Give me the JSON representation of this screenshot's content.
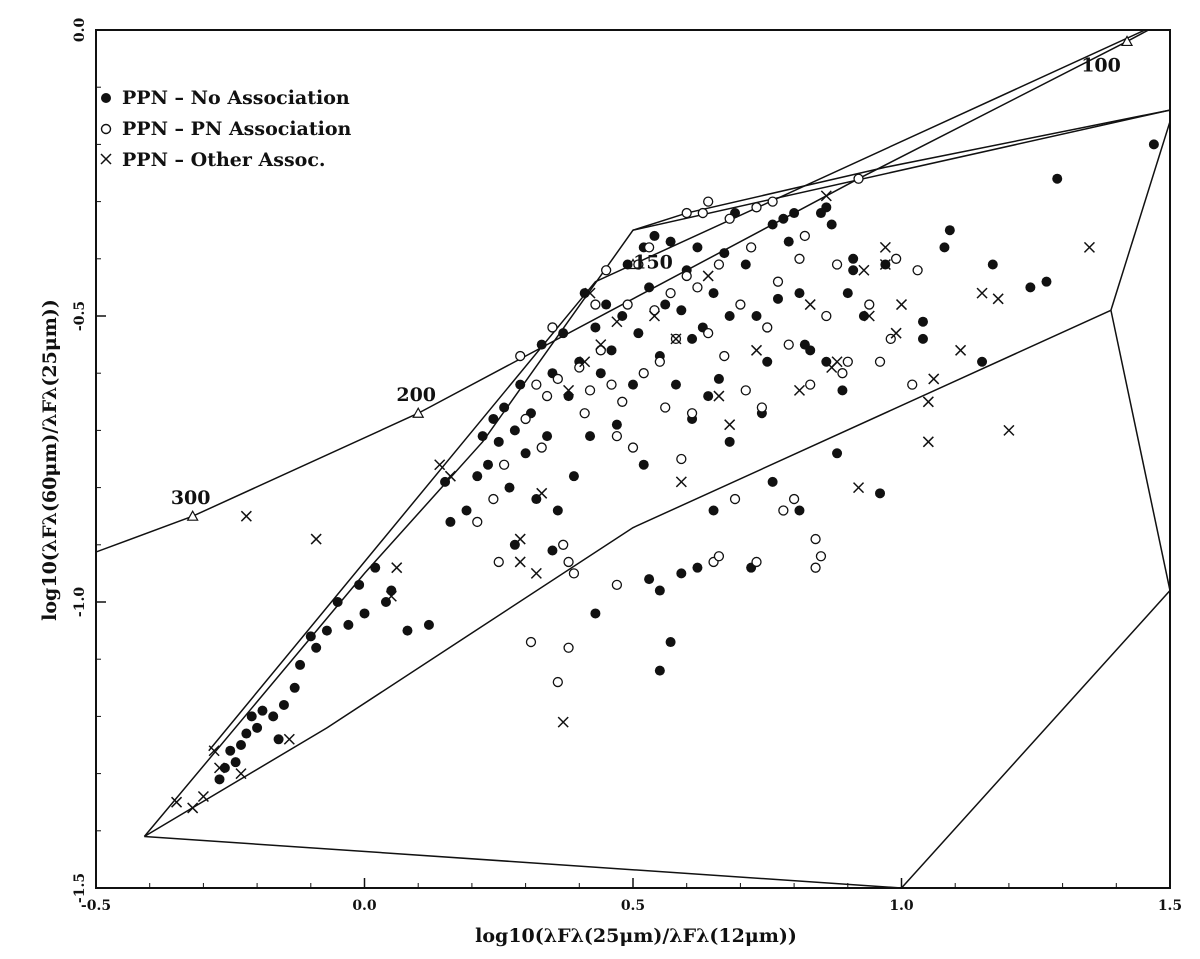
{
  "chart_data": {
    "type": "scatter",
    "xlim": [
      -0.5,
      1.5
    ],
    "ylim": [
      -1.5,
      0.0
    ],
    "x_ticks": [
      "-0.5",
      "0.0",
      "0.5",
      "1.0",
      "1.5"
    ],
    "y_ticks": [
      "0.0",
      "-0.5",
      "-1.0",
      "-1.5"
    ],
    "xlabel": "log10(λFλ(25μm)/λFλ(12μm))",
    "ylabel": "log10(λFλ(60μm)/λFλ(25μm))",
    "legend_position": "top-left",
    "grid": false,
    "colors": {
      "ink": "#111111"
    },
    "legend": [
      {
        "marker": "filled-circle",
        "label": "PPN – No Association"
      },
      {
        "marker": "open-circle",
        "label": "PPN – PN Association"
      },
      {
        "marker": "cross",
        "label": "PPN – Other Assoc."
      }
    ],
    "blackbody_line": {
      "points": [
        [
          -0.55,
          -0.93
        ],
        [
          -0.32,
          -0.85
        ],
        [
          0.1,
          -0.67
        ],
        [
          0.92,
          -0.26
        ],
        [
          1.42,
          -0.02
        ],
        [
          1.5,
          0.02
        ]
      ],
      "markers": [
        {
          "x": -0.32,
          "y": -0.85,
          "label": "300"
        },
        {
          "x": 0.1,
          "y": -0.67,
          "label": "200"
        },
        {
          "x": 0.5,
          "y": -0.41,
          "label": "150"
        },
        {
          "x": 1.42,
          "y": -0.02,
          "label": "100"
        }
      ]
    },
    "region_boundaries": [
      [
        [
          -0.41,
          -1.41
        ],
        [
          -0.07,
          -1.22
        ],
        [
          0.5,
          -0.87
        ],
        [
          1.39,
          -0.49
        ]
      ],
      [
        [
          -0.41,
          -1.41
        ],
        [
          0.0,
          -0.95
        ],
        [
          0.22,
          -0.72
        ],
        [
          0.5,
          -0.35
        ],
        [
          0.6,
          -0.32
        ],
        [
          0.97,
          -0.24
        ],
        [
          1.5,
          -0.14
        ]
      ],
      [
        [
          -0.41,
          -1.41
        ],
        [
          1.0,
          -1.5
        ]
      ],
      [
        [
          1.39,
          -0.49
        ],
        [
          1.5,
          -0.16
        ]
      ],
      [
        [
          1.39,
          -0.49
        ],
        [
          1.5,
          -0.98
        ]
      ],
      [
        [
          1.0,
          -1.5
        ],
        [
          1.5,
          -0.98
        ]
      ],
      [
        [
          0.5,
          -0.35
        ],
        [
          1.5,
          -0.14
        ]
      ],
      [
        [
          -0.29,
          -1.26
        ],
        [
          0.43,
          -0.44
        ],
        [
          1.5,
          0.02
        ]
      ]
    ],
    "series": [
      {
        "name": "PPN – No Association",
        "marker": "filled-circle",
        "points": [
          [
            1.47,
            -0.2
          ],
          [
            1.29,
            -0.26
          ],
          [
            1.27,
            -0.44
          ],
          [
            1.24,
            -0.45
          ],
          [
            1.17,
            -0.41
          ],
          [
            1.15,
            -0.58
          ],
          [
            1.09,
            -0.35
          ],
          [
            1.08,
            -0.38
          ],
          [
            1.04,
            -0.51
          ],
          [
            1.04,
            -0.54
          ],
          [
            0.97,
            -0.41
          ],
          [
            0.93,
            -0.5
          ],
          [
            0.91,
            -0.4
          ],
          [
            0.91,
            -0.42
          ],
          [
            0.9,
            -0.46
          ],
          [
            0.89,
            -0.63
          ],
          [
            0.88,
            -0.74
          ],
          [
            0.87,
            -0.34
          ],
          [
            0.86,
            -0.58
          ],
          [
            0.86,
            -0.31
          ],
          [
            0.85,
            -0.32
          ],
          [
            0.83,
            -0.56
          ],
          [
            0.82,
            -0.55
          ],
          [
            0.81,
            -0.46
          ],
          [
            0.8,
            -0.32
          ],
          [
            0.79,
            -0.37
          ],
          [
            0.78,
            -0.33
          ],
          [
            0.77,
            -0.47
          ],
          [
            0.76,
            -0.34
          ],
          [
            0.75,
            -0.58
          ],
          [
            0.74,
            -0.67
          ],
          [
            0.73,
            -0.5
          ],
          [
            0.72,
            -0.38
          ],
          [
            0.71,
            -0.41
          ],
          [
            0.69,
            -0.32
          ],
          [
            0.68,
            -0.5
          ],
          [
            0.67,
            -0.39
          ],
          [
            0.66,
            -0.61
          ],
          [
            0.65,
            -0.46
          ],
          [
            0.64,
            -0.64
          ],
          [
            0.63,
            -0.52
          ],
          [
            0.62,
            -0.38
          ],
          [
            0.61,
            -0.54
          ],
          [
            0.6,
            -0.42
          ],
          [
            0.59,
            -0.49
          ],
          [
            0.58,
            -0.62
          ],
          [
            0.57,
            -0.37
          ],
          [
            0.56,
            -0.48
          ],
          [
            0.55,
            -0.57
          ],
          [
            0.54,
            -0.36
          ],
          [
            0.53,
            -0.45
          ],
          [
            0.52,
            -0.38
          ],
          [
            0.51,
            -0.53
          ],
          [
            0.5,
            -0.62
          ],
          [
            0.49,
            -0.41
          ],
          [
            0.48,
            -0.5
          ],
          [
            0.47,
            -0.69
          ],
          [
            0.46,
            -0.56
          ],
          [
            0.45,
            -0.48
          ],
          [
            0.44,
            -0.6
          ],
          [
            0.43,
            -0.52
          ],
          [
            0.42,
            -0.71
          ],
          [
            0.41,
            -0.46
          ],
          [
            0.4,
            -0.58
          ],
          [
            0.39,
            -0.78
          ],
          [
            0.38,
            -0.64
          ],
          [
            0.37,
            -0.53
          ],
          [
            0.36,
            -0.84
          ],
          [
            0.35,
            -0.6
          ],
          [
            0.34,
            -0.71
          ],
          [
            0.33,
            -0.55
          ],
          [
            0.32,
            -0.82
          ],
          [
            0.31,
            -0.67
          ],
          [
            0.3,
            -0.74
          ],
          [
            0.29,
            -0.62
          ],
          [
            0.28,
            -0.7
          ],
          [
            0.27,
            -0.8
          ],
          [
            0.26,
            -0.66
          ],
          [
            0.25,
            -0.72
          ],
          [
            0.24,
            -0.68
          ],
          [
            0.23,
            -0.76
          ],
          [
            0.22,
            -0.71
          ],
          [
            0.21,
            -0.78
          ],
          [
            0.19,
            -0.84
          ],
          [
            0.16,
            -0.86
          ],
          [
            0.15,
            -0.79
          ],
          [
            0.12,
            -1.04
          ],
          [
            0.08,
            -1.05
          ],
          [
            0.05,
            -0.98
          ],
          [
            0.04,
            -1.0
          ],
          [
            0.02,
            -0.94
          ],
          [
            0.0,
            -1.02
          ],
          [
            -0.01,
            -0.97
          ],
          [
            -0.03,
            -1.04
          ],
          [
            -0.05,
            -1.0
          ],
          [
            -0.07,
            -1.05
          ],
          [
            -0.09,
            -1.08
          ],
          [
            -0.1,
            -1.06
          ],
          [
            -0.12,
            -1.11
          ],
          [
            -0.13,
            -1.15
          ],
          [
            -0.15,
            -1.18
          ],
          [
            -0.16,
            -1.24
          ],
          [
            -0.17,
            -1.2
          ],
          [
            -0.19,
            -1.19
          ],
          [
            -0.2,
            -1.22
          ],
          [
            -0.21,
            -1.2
          ],
          [
            -0.22,
            -1.23
          ],
          [
            -0.23,
            -1.25
          ],
          [
            -0.24,
            -1.28
          ],
          [
            -0.25,
            -1.26
          ],
          [
            -0.26,
            -1.29
          ],
          [
            -0.27,
            -1.31
          ],
          [
            0.55,
            -0.98
          ],
          [
            0.57,
            -1.07
          ],
          [
            0.59,
            -0.95
          ],
          [
            0.62,
            -0.94
          ],
          [
            0.55,
            -1.12
          ],
          [
            0.43,
            -1.02
          ],
          [
            0.96,
            -0.81
          ],
          [
            0.72,
            -0.94
          ],
          [
            0.53,
            -0.96
          ],
          [
            0.35,
            -0.91
          ],
          [
            0.28,
            -0.9
          ],
          [
            0.65,
            -0.84
          ],
          [
            0.81,
            -0.84
          ],
          [
            0.76,
            -0.79
          ],
          [
            0.68,
            -0.72
          ],
          [
            0.61,
            -0.68
          ],
          [
            0.52,
            -0.76
          ]
        ]
      },
      {
        "name": "PPN – PN Association",
        "marker": "open-circle",
        "points": [
          [
            1.03,
            -0.42
          ],
          [
            1.02,
            -0.62
          ],
          [
            0.99,
            -0.4
          ],
          [
            0.98,
            -0.54
          ],
          [
            0.96,
            -0.58
          ],
          [
            0.94,
            -0.48
          ],
          [
            0.92,
            -0.26
          ],
          [
            0.9,
            -0.58
          ],
          [
            0.89,
            -0.6
          ],
          [
            0.88,
            -0.41
          ],
          [
            0.86,
            -0.5
          ],
          [
            0.85,
            -0.92
          ],
          [
            0.84,
            -0.94
          ],
          [
            0.83,
            -0.62
          ],
          [
            0.82,
            -0.36
          ],
          [
            0.81,
            -0.4
          ],
          [
            0.8,
            -0.82
          ],
          [
            0.79,
            -0.55
          ],
          [
            0.78,
            -0.84
          ],
          [
            0.77,
            -0.44
          ],
          [
            0.76,
            -0.3
          ],
          [
            0.75,
            -0.52
          ],
          [
            0.74,
            -0.66
          ],
          [
            0.73,
            -0.31
          ],
          [
            0.72,
            -0.38
          ],
          [
            0.71,
            -0.63
          ],
          [
            0.7,
            -0.48
          ],
          [
            0.69,
            -0.82
          ],
          [
            0.68,
            -0.33
          ],
          [
            0.67,
            -0.57
          ],
          [
            0.66,
            -0.41
          ],
          [
            0.65,
            -0.93
          ],
          [
            0.64,
            -0.53
          ],
          [
            0.63,
            -0.32
          ],
          [
            0.62,
            -0.45
          ],
          [
            0.61,
            -0.67
          ],
          [
            0.6,
            -0.43
          ],
          [
            0.59,
            -0.75
          ],
          [
            0.58,
            -0.54
          ],
          [
            0.57,
            -0.46
          ],
          [
            0.56,
            -0.66
          ],
          [
            0.55,
            -0.58
          ],
          [
            0.54,
            -0.49
          ],
          [
            0.53,
            -0.38
          ],
          [
            0.52,
            -0.6
          ],
          [
            0.51,
            -0.41
          ],
          [
            0.5,
            -0.73
          ],
          [
            0.49,
            -0.48
          ],
          [
            0.48,
            -0.65
          ],
          [
            0.47,
            -0.71
          ],
          [
            0.46,
            -0.62
          ],
          [
            0.45,
            -0.42
          ],
          [
            0.44,
            -0.56
          ],
          [
            0.43,
            -0.48
          ],
          [
            0.42,
            -0.63
          ],
          [
            0.41,
            -0.67
          ],
          [
            0.4,
            -0.59
          ],
          [
            0.39,
            -0.95
          ],
          [
            0.38,
            -0.93
          ],
          [
            0.37,
            -0.9
          ],
          [
            0.36,
            -0.61
          ],
          [
            0.35,
            -0.52
          ],
          [
            0.34,
            -0.64
          ],
          [
            0.33,
            -0.73
          ],
          [
            0.32,
            -0.62
          ],
          [
            0.3,
            -0.68
          ],
          [
            0.29,
            -0.57
          ],
          [
            0.26,
            -0.76
          ],
          [
            0.25,
            -0.93
          ],
          [
            0.24,
            -0.82
          ],
          [
            0.21,
            -0.86
          ],
          [
            0.38,
            -1.08
          ],
          [
            0.36,
            -1.14
          ],
          [
            0.31,
            -1.07
          ],
          [
            0.47,
            -0.97
          ],
          [
            0.73,
            -0.93
          ],
          [
            0.84,
            -0.89
          ],
          [
            0.66,
            -0.92
          ],
          [
            0.64,
            -0.3
          ],
          [
            0.6,
            -0.32
          ]
        ]
      },
      {
        "name": "PPN – Other Assoc.",
        "marker": "cross",
        "points": [
          [
            1.35,
            -0.38
          ],
          [
            1.2,
            -0.7
          ],
          [
            1.18,
            -0.47
          ],
          [
            1.15,
            -0.46
          ],
          [
            1.11,
            -0.56
          ],
          [
            1.06,
            -0.61
          ],
          [
            1.05,
            -0.65
          ],
          [
            1.05,
            -0.72
          ],
          [
            1.0,
            -0.48
          ],
          [
            0.99,
            -0.53
          ],
          [
            0.97,
            -0.38
          ],
          [
            0.97,
            -0.41
          ],
          [
            0.94,
            -0.5
          ],
          [
            0.93,
            -0.42
          ],
          [
            0.92,
            -0.8
          ],
          [
            0.88,
            -0.58
          ],
          [
            0.87,
            -0.59
          ],
          [
            0.86,
            -0.29
          ],
          [
            0.83,
            -0.48
          ],
          [
            0.81,
            -0.63
          ],
          [
            0.73,
            -0.56
          ],
          [
            0.68,
            -0.69
          ],
          [
            0.66,
            -0.64
          ],
          [
            0.64,
            -0.43
          ],
          [
            0.59,
            -0.79
          ],
          [
            0.58,
            -0.54
          ],
          [
            0.54,
            -0.5
          ],
          [
            0.47,
            -0.51
          ],
          [
            0.44,
            -0.55
          ],
          [
            0.42,
            -0.46
          ],
          [
            0.41,
            -0.58
          ],
          [
            0.38,
            -0.63
          ],
          [
            0.37,
            -1.21
          ],
          [
            0.33,
            -0.81
          ],
          [
            0.32,
            -0.95
          ],
          [
            0.29,
            -0.89
          ],
          [
            0.29,
            -0.93
          ],
          [
            0.16,
            -0.78
          ],
          [
            0.14,
            -0.76
          ],
          [
            0.05,
            -0.99
          ],
          [
            0.06,
            -0.94
          ],
          [
            -0.09,
            -0.89
          ],
          [
            -0.22,
            -0.85
          ],
          [
            -0.14,
            -1.24
          ],
          [
            -0.23,
            -1.3
          ],
          [
            -0.27,
            -1.29
          ],
          [
            -0.3,
            -1.34
          ],
          [
            -0.32,
            -1.36
          ],
          [
            -0.35,
            -1.35
          ],
          [
            -0.28,
            -1.26
          ]
        ]
      }
    ]
  }
}
